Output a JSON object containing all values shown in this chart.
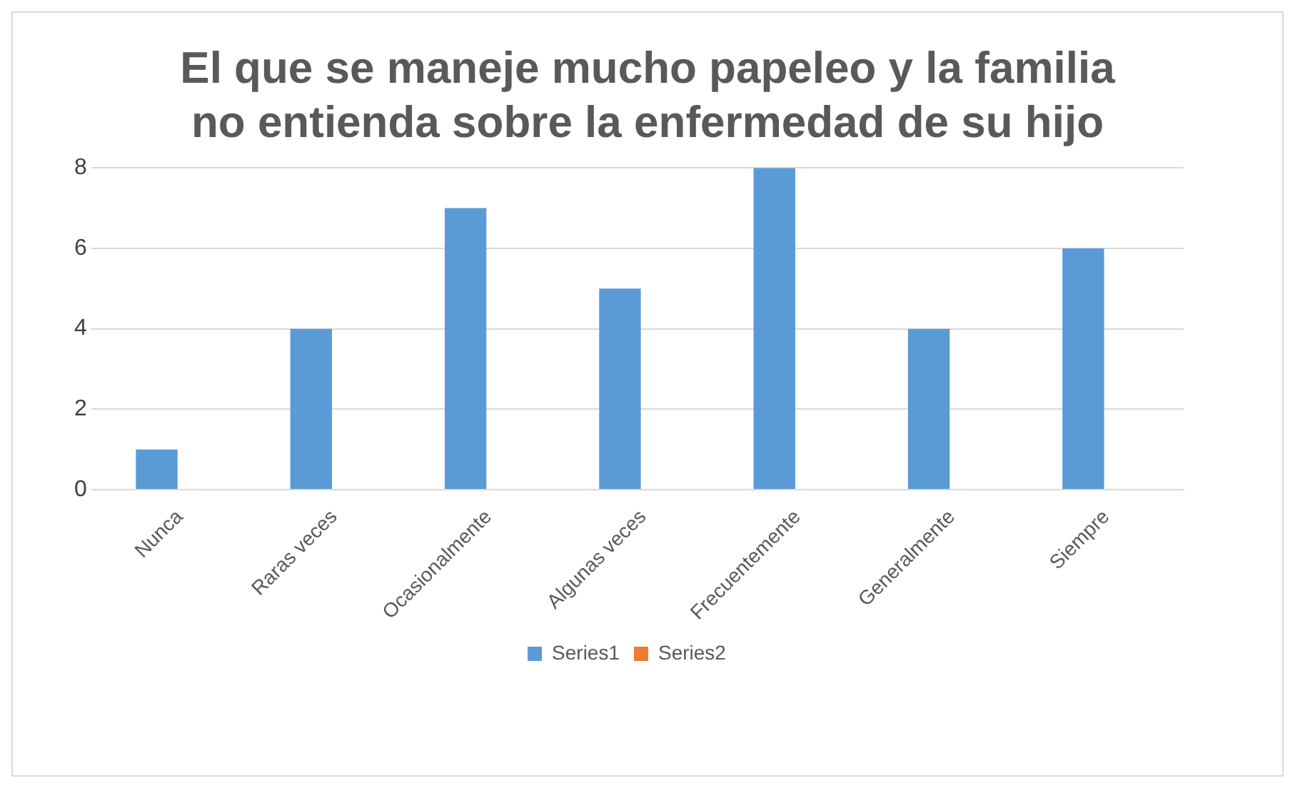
{
  "chart_data": {
    "type": "bar",
    "title": "El que se maneje mucho papeleo y la familia no entienda sobre la enfermedad de su hijo",
    "categories": [
      "Nunca",
      "Raras veces",
      "Ocasionalmente",
      "Algunas veces",
      "Frecuentemente",
      "Generalmente",
      "Siempre"
    ],
    "series": [
      {
        "name": "Series1",
        "color": "#5b9bd5",
        "values": [
          1,
          4,
          7,
          5,
          8,
          4,
          6
        ]
      },
      {
        "name": "Series2",
        "color": "#ed7d31",
        "values": [
          0,
          0,
          0,
          0,
          0,
          0,
          0
        ]
      }
    ],
    "ylim": [
      0,
      8
    ],
    "yticks": [
      0,
      2,
      4,
      6,
      8
    ],
    "grid": "y",
    "legend": "bottom"
  }
}
